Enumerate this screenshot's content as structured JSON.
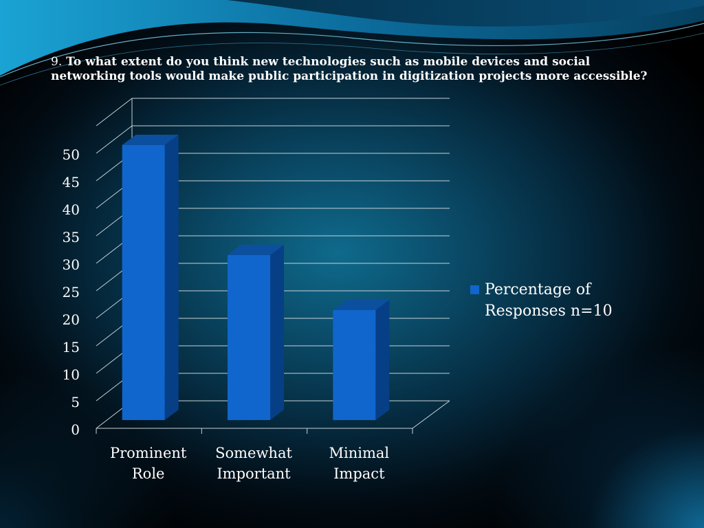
{
  "slide": {
    "title_number": "9.",
    "title_text": "To what extent do you think new technologies such as mobile devices and social networking tools would make public participation in digitization projects more accessible?"
  },
  "colors": {
    "bar_front": "#1066cc",
    "bar_side": "#073f86",
    "bar_top": "#0c4f9e",
    "gridline": "#c8d2d8",
    "text": "#ffffff"
  },
  "chart_data": {
    "type": "bar",
    "categories": [
      [
        "Prominent",
        "Role"
      ],
      [
        "Somewhat",
        "Important"
      ],
      [
        "Minimal",
        "Impact"
      ]
    ],
    "series": [
      {
        "name": "Percentage of Responses  n=10",
        "values": [
          50,
          30,
          20
        ]
      }
    ],
    "y_ticks": [
      "0",
      "5",
      "10",
      "15",
      "20",
      "25",
      "30",
      "35",
      "40",
      "45",
      "50"
    ],
    "ylim": [
      0,
      55
    ],
    "grid": true,
    "legend_position": "right",
    "style": "3d-column"
  }
}
